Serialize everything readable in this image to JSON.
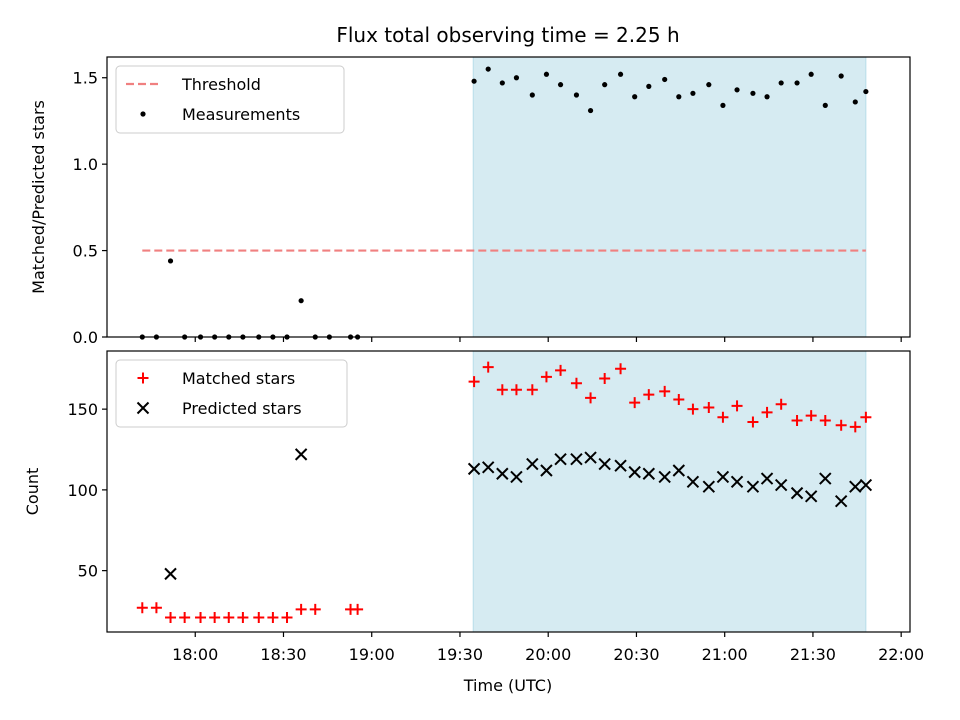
{
  "chart_data": {
    "title": "Flux total observing time = 2.25 h",
    "xlabel": "Time (UTC)",
    "xlim": [
      17.5,
      22.05
    ],
    "x_ticks": [
      18.0,
      18.5,
      19.0,
      19.5,
      20.0,
      20.5,
      21.0,
      21.5,
      22.0
    ],
    "x_tick_labels": [
      "18:00",
      "18:30",
      "19:00",
      "19:30",
      "20:00",
      "20:30",
      "21:00",
      "21:30",
      "22:00"
    ],
    "shaded_region": {
      "x_start": 19.575,
      "x_end": 21.8,
      "color": "#add8e6"
    },
    "panels": [
      {
        "type": "scatter",
        "ylabel": "Matched/Predicted stars",
        "ylim": [
          0,
          1.62
        ],
        "y_ticks": [
          0.0,
          0.5,
          1.0,
          1.5
        ],
        "y_tick_labels": [
          "0.0",
          "0.5",
          "1.0",
          "1.5"
        ],
        "legend": [
          "Threshold",
          "Measurements"
        ],
        "threshold": {
          "name": "Threshold",
          "value": 0.5,
          "x_start": 17.7,
          "x_end": 21.8,
          "color": "#f08080"
        },
        "series": [
          {
            "name": "Measurements",
            "marker": "dot",
            "color": "#000000",
            "x": [
              17.7,
              17.78,
              17.86,
              17.94,
              18.03,
              18.11,
              18.19,
              18.27,
              18.36,
              18.44,
              18.52,
              18.6,
              18.68,
              18.76,
              18.88,
              18.92,
              19.58,
              19.66,
              19.74,
              19.82,
              19.91,
              19.99,
              20.07,
              20.16,
              20.24,
              20.32,
              20.41,
              20.49,
              20.57,
              20.66,
              20.74,
              20.82,
              20.91,
              20.99,
              21.07,
              21.16,
              21.24,
              21.32,
              21.41,
              21.49,
              21.57,
              21.66,
              21.74,
              21.8
            ],
            "y": [
              0.0,
              0.0,
              0.44,
              0.0,
              0.0,
              0.0,
              0.0,
              0.0,
              0.0,
              0.0,
              0.0,
              0.21,
              0.0,
              0.0,
              0.0,
              0.0,
              1.48,
              1.55,
              1.47,
              1.5,
              1.4,
              1.52,
              1.46,
              1.4,
              1.31,
              1.46,
              1.52,
              1.39,
              1.45,
              1.49,
              1.39,
              1.41,
              1.46,
              1.34,
              1.43,
              1.41,
              1.39,
              1.47,
              1.47,
              1.52,
              1.34,
              1.51,
              1.36,
              1.42
            ]
          }
        ]
      },
      {
        "type": "scatter",
        "ylabel": "Count",
        "ylim": [
          12,
          186
        ],
        "y_ticks": [
          50,
          100,
          150
        ],
        "y_tick_labels": [
          "50",
          "100",
          "150"
        ],
        "legend": [
          "Matched stars",
          "Predicted stars"
        ],
        "series": [
          {
            "name": "Matched stars",
            "marker": "plus",
            "color": "#ff0000",
            "x": [
              17.7,
              17.78,
              17.86,
              17.94,
              18.03,
              18.11,
              18.19,
              18.27,
              18.36,
              18.44,
              18.52,
              18.6,
              18.68,
              18.88,
              18.92,
              19.58,
              19.66,
              19.74,
              19.82,
              19.91,
              19.99,
              20.07,
              20.16,
              20.24,
              20.32,
              20.41,
              20.49,
              20.57,
              20.66,
              20.74,
              20.82,
              20.91,
              20.99,
              21.07,
              21.16,
              21.24,
              21.32,
              21.41,
              21.49,
              21.57,
              21.66,
              21.74,
              21.8
            ],
            "y": [
              27,
              27,
              21,
              21,
              21,
              21,
              21,
              21,
              21,
              21,
              21,
              26,
              26,
              26,
              26,
              167,
              176,
              162,
              162,
              162,
              170,
              174,
              166,
              157,
              169,
              175,
              154,
              159,
              161,
              156,
              150,
              151,
              145,
              152,
              142,
              148,
              153,
              143,
              146,
              143,
              140,
              139,
              145
            ]
          },
          {
            "name": "Predicted stars",
            "marker": "x",
            "color": "#000000",
            "x": [
              17.86,
              18.6,
              19.58,
              19.66,
              19.74,
              19.82,
              19.91,
              19.99,
              20.07,
              20.16,
              20.24,
              20.32,
              20.41,
              20.49,
              20.57,
              20.66,
              20.74,
              20.82,
              20.91,
              20.99,
              21.07,
              21.16,
              21.24,
              21.32,
              21.41,
              21.49,
              21.57,
              21.66,
              21.74,
              21.8
            ],
            "y": [
              48,
              122,
              113,
              114,
              110,
              108,
              116,
              112,
              119,
              119,
              120,
              116,
              115,
              111,
              110,
              108,
              112,
              105,
              102,
              108,
              105,
              102,
              107,
              103,
              98,
              96,
              107,
              93,
              102,
              103
            ]
          }
        ]
      }
    ]
  }
}
